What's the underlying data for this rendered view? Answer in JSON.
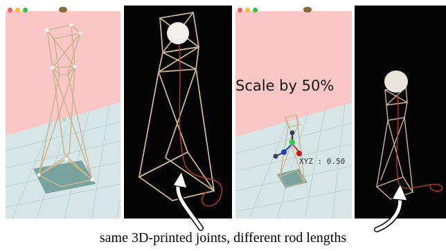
{
  "window": {
    "traffic_light_colors": [
      "#ff5f57",
      "#febc2e",
      "#28c840"
    ],
    "title_icon": "wood-log-icon"
  },
  "panels": [
    {
      "name": "simulation-original",
      "kind": "ui-render"
    },
    {
      "name": "photo-original",
      "kind": "photo"
    },
    {
      "name": "simulation-scaled",
      "kind": "ui-render"
    },
    {
      "name": "photo-scaled",
      "kind": "photo"
    }
  ],
  "overlay": {
    "scale_label": "Scale by 50%",
    "gizmo_readout": "XYZ : 0.50"
  },
  "caption": "same 3D-printed joints, different rod lengths",
  "colors": {
    "sky": "#fbc6c6",
    "floor": "#d6e6e6",
    "grid": "#b9d2d2",
    "rod": "#c9b591",
    "joint": "#ffffff",
    "photo_bg": "#050505",
    "wire": "#c0392b",
    "arrow": "#ffffff"
  }
}
